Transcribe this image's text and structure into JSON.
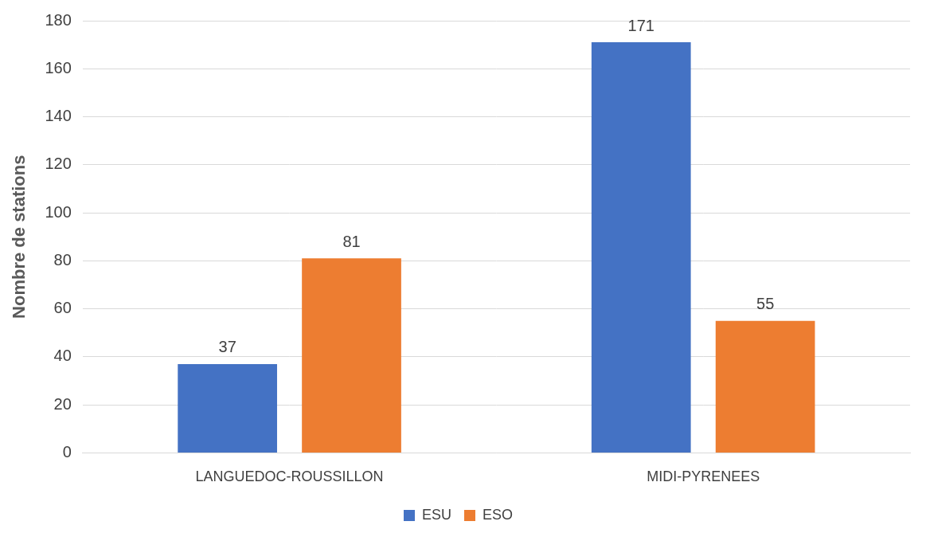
{
  "chart_data": {
    "type": "bar",
    "y_label": "Nombre de stations",
    "categories": [
      "LANGUEDOC-ROUSSILLON",
      "MIDI-PYRENEES"
    ],
    "series": [
      {
        "name": "ESU",
        "color": "#4472c4",
        "values": [
          37,
          171
        ]
      },
      {
        "name": "ESO",
        "color": "#ed7d31",
        "values": [
          81,
          55
        ]
      }
    ],
    "ylim": [
      0,
      180
    ],
    "yticks": [
      0,
      20,
      40,
      60,
      80,
      100,
      120,
      140,
      160,
      180
    ],
    "grid": true,
    "legend": "bottom",
    "data_labels": true
  }
}
